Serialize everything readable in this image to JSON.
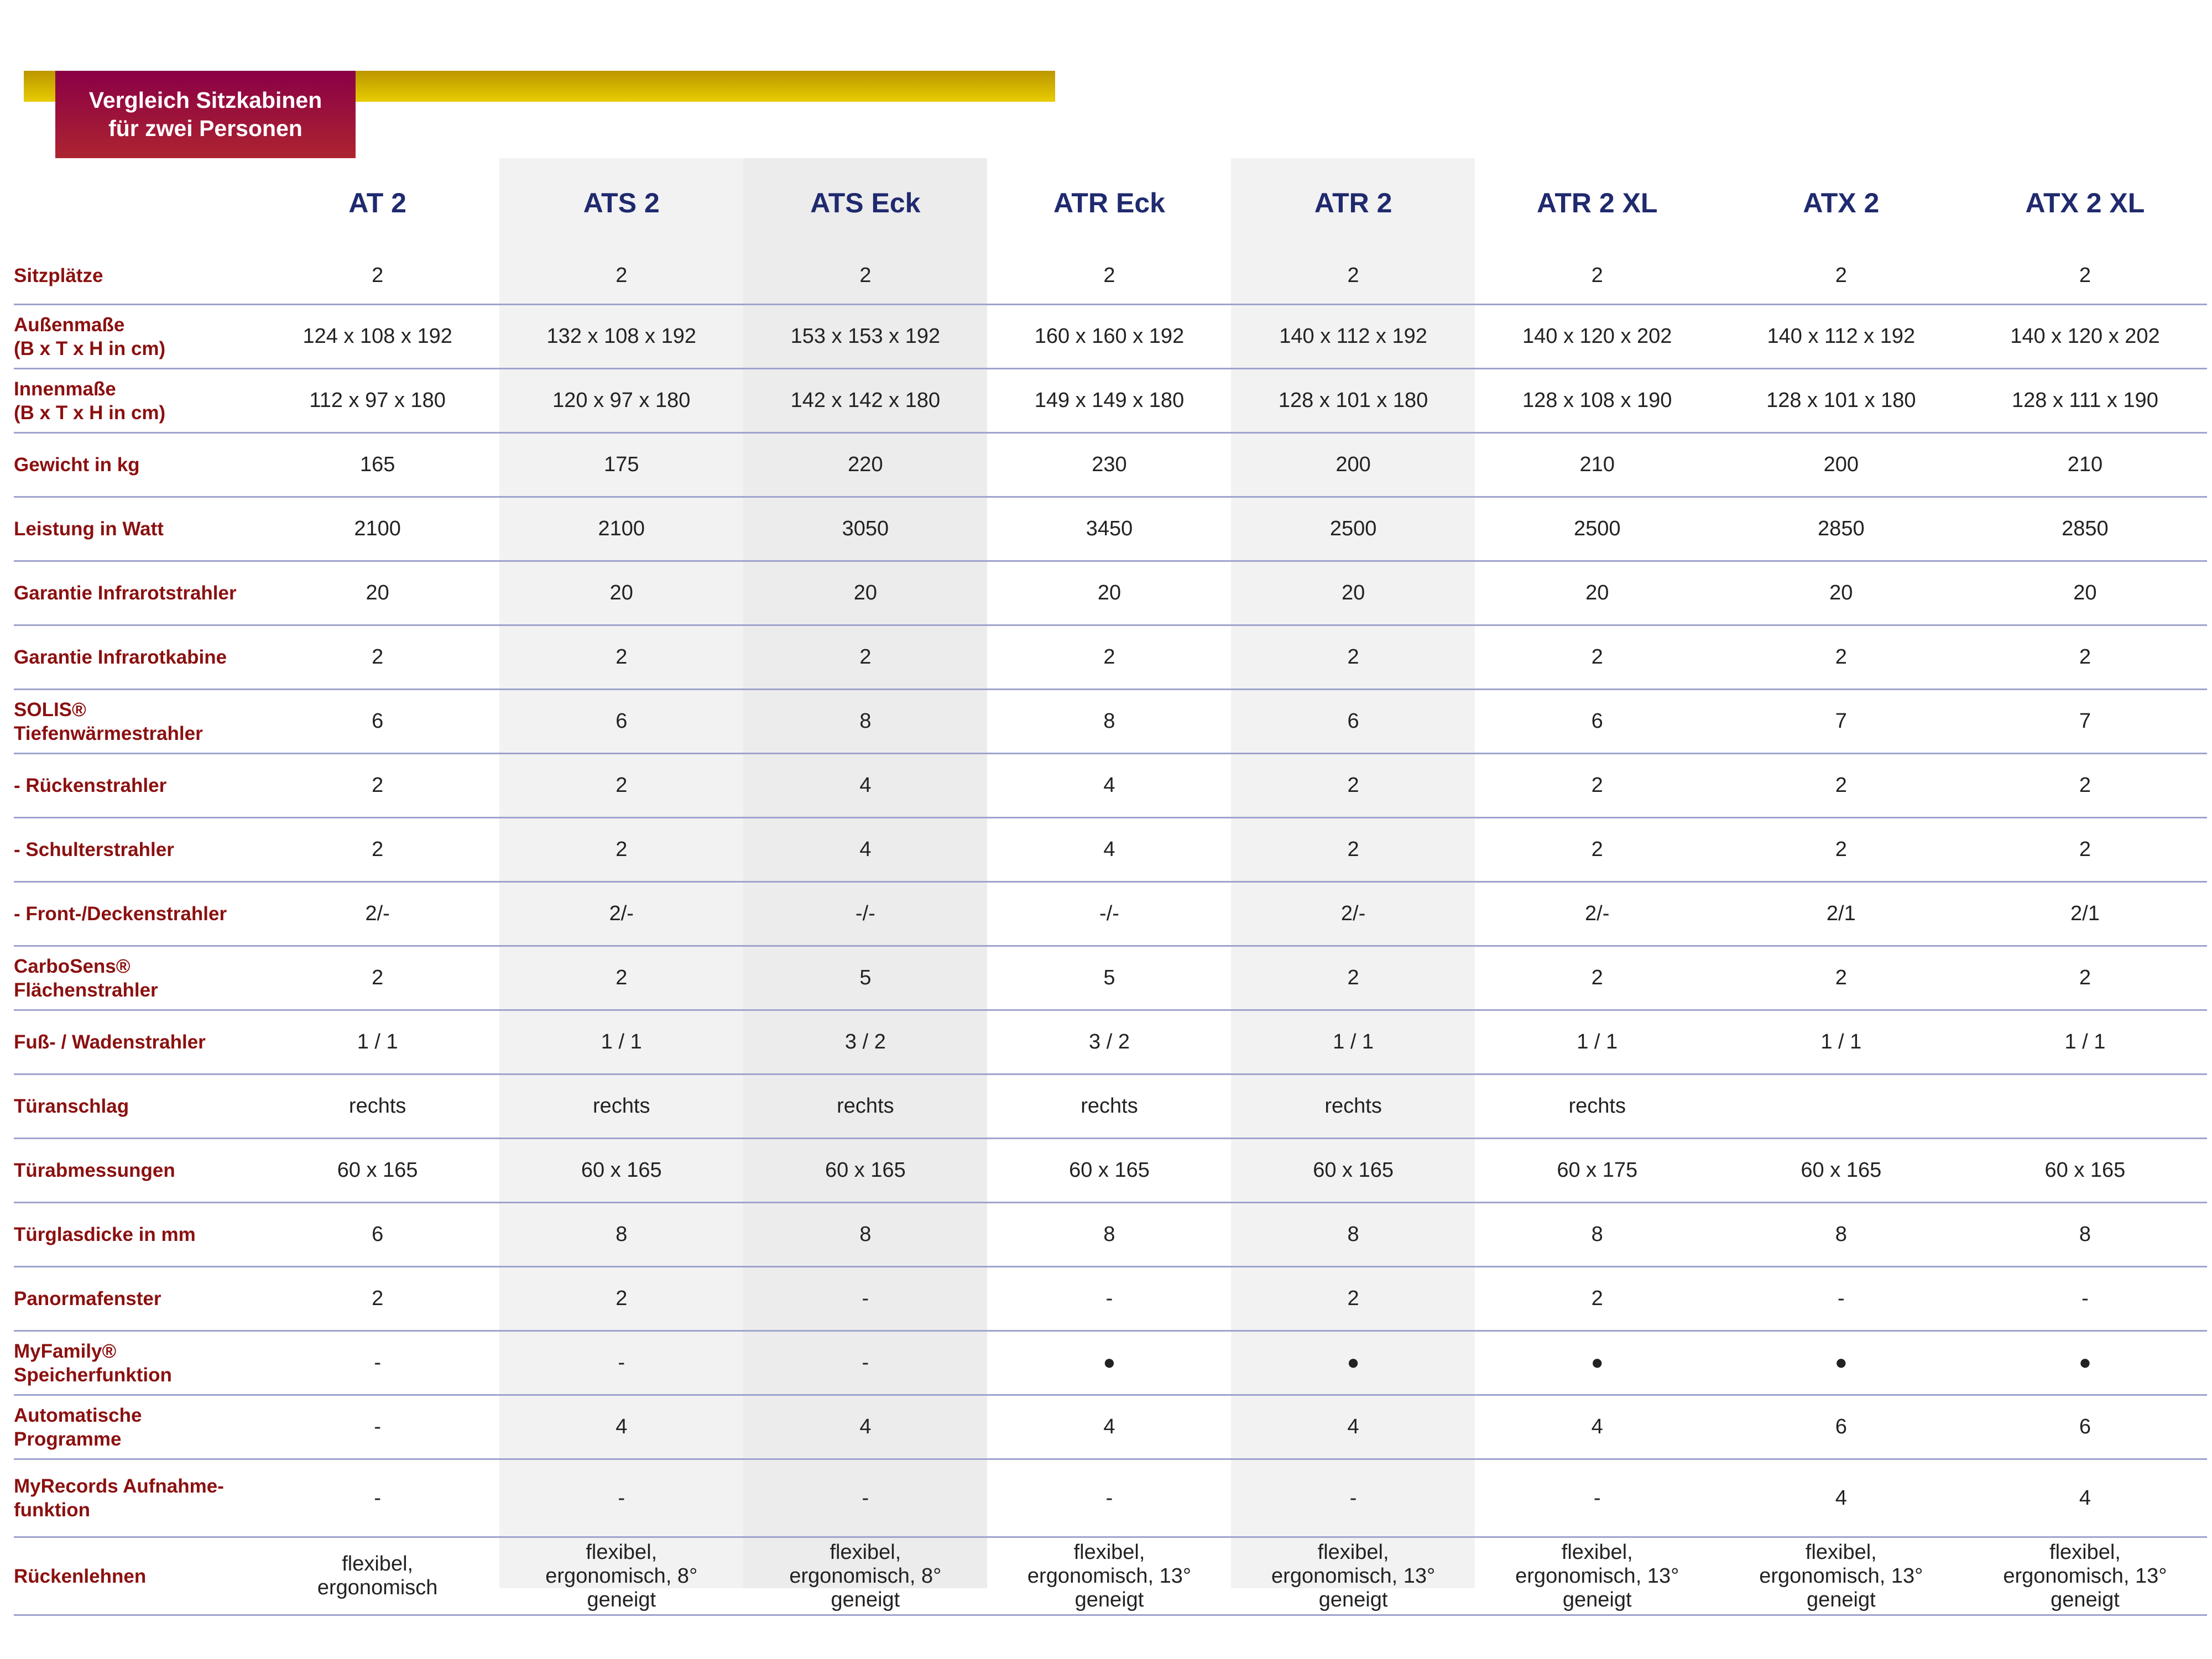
{
  "title": [
    "Vergleich Sitzkabinen",
    "für zwei Personen"
  ],
  "colors": {
    "gold": "#d4b400",
    "title_box": "#9a1040",
    "header_text": "#1f2a6e",
    "label_text": "#8b1010",
    "row_line": "#9ea4cc"
  },
  "columns": [
    "AT 2",
    "ATS 2",
    "ATS Eck",
    "ATR Eck",
    "ATR 2",
    "ATR 2 XL",
    "ATX 2",
    "ATX 2 XL"
  ],
  "rows": [
    {
      "label": "Sitzplätze",
      "values": [
        "2",
        "2",
        "2",
        "2",
        "2",
        "2",
        "2",
        "2"
      ]
    },
    {
      "label": "Außenmaße",
      "label2": "(B x T x H in cm)",
      "values": [
        "124 x 108 x 192",
        "132 x 108 x 192",
        "153 x 153 x 192",
        "160 x 160 x 192",
        "140 x 112 x 192",
        "140 x 120 x 202",
        "140 x 112 x 192",
        "140 x 120 x 202"
      ]
    },
    {
      "label": "Innenmaße",
      "label2": "(B x T x H in cm)",
      "values": [
        "112 x 97 x 180",
        "120 x 97 x 180",
        "142 x 142 x 180",
        "149 x 149 x 180",
        "128 x 101 x 180",
        "128 x 108 x 190",
        "128 x 101 x 180",
        "128 x 111 x 190"
      ]
    },
    {
      "label": "Gewicht in kg",
      "values": [
        "165",
        "175",
        "220",
        "230",
        "200",
        "210",
        "200",
        "210"
      ]
    },
    {
      "label": "Leistung in Watt",
      "values": [
        "2100",
        "2100",
        "3050",
        "3450",
        "2500",
        "2500",
        "2850",
        "2850"
      ]
    },
    {
      "label": "Garantie Infrarotstrahler",
      "values": [
        "20",
        "20",
        "20",
        "20",
        "20",
        "20",
        "20",
        "20"
      ]
    },
    {
      "label": "Garantie Infrarotkabine",
      "values": [
        "2",
        "2",
        "2",
        "2",
        "2",
        "2",
        "2",
        "2"
      ]
    },
    {
      "label": "SOLIS®",
      "label2": "Tiefenwärmestrahler",
      "values": [
        "6",
        "6",
        "8",
        "8",
        "6",
        "6",
        "7",
        "7"
      ]
    },
    {
      "label": "- Rückenstrahler",
      "values": [
        "2",
        "2",
        "4",
        "4",
        "2",
        "2",
        "2",
        "2"
      ]
    },
    {
      "label": "- Schulterstrahler",
      "values": [
        "2",
        "2",
        "4",
        "4",
        "2",
        "2",
        "2",
        "2"
      ]
    },
    {
      "label": "- Front-/Deckenstrahler",
      "values": [
        "2/-",
        "2/-",
        "-/-",
        "-/-",
        "2/-",
        "2/-",
        "2/1",
        "2/1"
      ]
    },
    {
      "label": "CarboSens®",
      "label2": "Flächenstrahler",
      "values": [
        "2",
        "2",
        "5",
        "5",
        "2",
        "2",
        "2",
        "2"
      ]
    },
    {
      "label": "Fuß- / Wadenstrahler",
      "values": [
        "1 / 1",
        "1 / 1",
        "3 / 2",
        "3 / 2",
        "1 / 1",
        "1 / 1",
        "1 / 1",
        "1 / 1"
      ]
    },
    {
      "label": "Türanschlag",
      "values": [
        "rechts",
        "rechts",
        "rechts",
        "rechts",
        "rechts",
        "rechts",
        "",
        ""
      ]
    },
    {
      "label": "Türabmessungen",
      "values": [
        "60 x 165",
        "60 x 165",
        "60 x 165",
        "60 x 165",
        "60 x 165",
        "60 x 175",
        "60 x 165",
        "60 x 165"
      ]
    },
    {
      "label": "Türglasdicke in mm",
      "values": [
        "6",
        "8",
        "8",
        "8",
        "8",
        "8",
        "8",
        "8"
      ]
    },
    {
      "label": "Panormafenster",
      "values": [
        "2",
        "2",
        "-",
        "-",
        "2",
        "2",
        "-",
        "-"
      ]
    },
    {
      "label": "MyFamily®",
      "label2": "Speicherfunktion",
      "values": [
        "-",
        "-",
        "-",
        "●",
        "●",
        "●",
        "●",
        "●"
      ]
    },
    {
      "label": "Automatische",
      "label2": "Programme",
      "values": [
        "-",
        "4",
        "4",
        "4",
        "4",
        "4",
        "6",
        "6"
      ]
    },
    {
      "label": "MyRecords Aufnahme-",
      "label2": "funktion",
      "values": [
        "-",
        "-",
        "-",
        "-",
        "-",
        "-",
        "4",
        "4"
      ]
    },
    {
      "label": "Rückenlehnen",
      "values": [
        "flexibel, ergonomisch",
        "flexibel, ergonomisch, 8° geneigt",
        "flexibel, ergonomisch, 8° geneigt",
        "flexibel, ergonomisch, 13° geneigt",
        "flexibel, ergonomisch, 13° geneigt",
        "flexibel, ergonomisch, 13° geneigt",
        "flexibel, ergonomisch, 13° geneigt",
        "flexibel, ergonomisch, 13° geneigt"
      ]
    }
  ]
}
